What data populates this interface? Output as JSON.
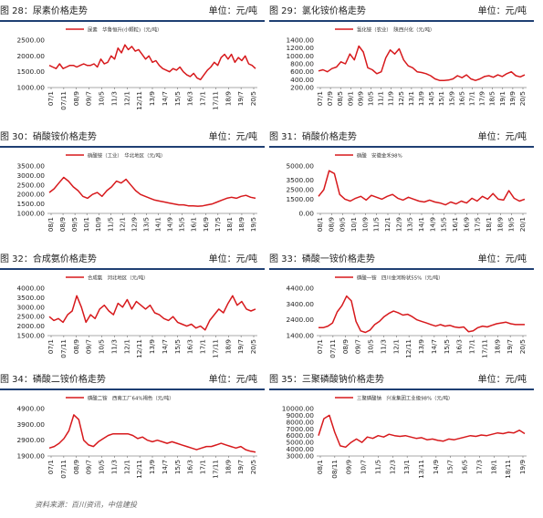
{
  "source": "资料来源：百川资讯，中信建投",
  "unit_label": "单位：元/吨",
  "accent": "#d7191c",
  "rule_color": "#1f3f73",
  "chart_data": [
    {
      "id": "c28",
      "type": "line",
      "title": "图 28：尿素价格走势",
      "legend": "尿素　华鲁恒升(小颗粒)（元/吨）",
      "ylim": [
        1000,
        2500
      ],
      "yticks": [
        "1000.00",
        "1500.00",
        "2000.00",
        "2500.00"
      ],
      "xticks": [
        "07/1",
        "07/11",
        "08/9",
        "09/7",
        "10/5",
        "11/3",
        "12/1",
        "12/11",
        "13/9",
        "14/7",
        "15/5",
        "16/3",
        "17/1",
        "17/11",
        "18/9",
        "19/7",
        "20/5"
      ],
      "values": [
        1700,
        1650,
        1600,
        1750,
        1600,
        1650,
        1700,
        1700,
        1650,
        1700,
        1750,
        1700,
        1700,
        1750,
        1650,
        1900,
        1750,
        1800,
        2000,
        1900,
        2250,
        2100,
        2350,
        2200,
        2300,
        2150,
        2200,
        2050,
        1900,
        2000,
        1800,
        1850,
        1700,
        1600,
        1550,
        1500,
        1600,
        1550,
        1650,
        1500,
        1400,
        1350,
        1450,
        1300,
        1250,
        1400,
        1550,
        1650,
        1800,
        1700,
        1950,
        2050,
        1900,
        2050,
        1800,
        1950,
        1850,
        2000,
        1750,
        1700,
        1600
      ]
    },
    {
      "id": "c29",
      "type": "line",
      "title": "图 29：氯化铵价格走势",
      "legend": "氯化铵（农业）　陕西兴化（元/吨）",
      "ylim": [
        200,
        1400
      ],
      "yticks": [
        "200.00",
        "400.00",
        "600.00",
        "800.00",
        "1000.00",
        "1200.00",
        "1400.00"
      ],
      "xticks": [
        "07/1",
        "07/9",
        "08/5",
        "09/1",
        "09/9",
        "10/5",
        "11/1",
        "11/9",
        "12/5",
        "13/1",
        "13/9",
        "14/5",
        "15/1",
        "15/9",
        "16/5",
        "17/1",
        "17/9",
        "18/5",
        "19/1",
        "19/9",
        "20/5"
      ],
      "values": [
        620,
        650,
        600,
        680,
        720,
        850,
        800,
        1050,
        900,
        1250,
        1100,
        700,
        650,
        550,
        600,
        950,
        1150,
        1050,
        1180,
        900,
        750,
        700,
        600,
        580,
        550,
        500,
        420,
        380,
        380,
        390,
        420,
        500,
        450,
        520,
        420,
        380,
        420,
        480,
        500,
        460,
        520,
        480,
        550,
        600,
        500,
        470,
        520
      ]
    },
    {
      "id": "c30",
      "type": "line",
      "title": "图 30：硝酸铵价格走势",
      "legend": "硝酸铵（工业）　华北地区（元/吨）",
      "ylim": [
        1000,
        3500
      ],
      "yticks": [
        "1000.00",
        "1500.00",
        "2000.00",
        "2500.00",
        "3000.00",
        "3500.00"
      ],
      "xticks": [
        "08/1",
        "08/9",
        "09/5",
        "10/1",
        "10/9",
        "11/5",
        "12/1",
        "12/9",
        "13/5",
        "14/1",
        "14/9",
        "15/5",
        "16/1",
        "16/9",
        "17/5",
        "18/1",
        "18/9",
        "19/5"
      ],
      "values": [
        2100,
        2300,
        2600,
        2900,
        2700,
        2400,
        2200,
        1900,
        1800,
        2000,
        2100,
        1900,
        2200,
        2400,
        2700,
        2600,
        2800,
        2500,
        2200,
        2000,
        1900,
        1800,
        1700,
        1650,
        1600,
        1550,
        1500,
        1450,
        1450,
        1400,
        1400,
        1380,
        1400,
        1450,
        1500,
        1600,
        1700,
        1800,
        1850,
        1800,
        1900,
        1950,
        1850,
        1800
      ]
    },
    {
      "id": "c31",
      "type": "line",
      "title": "图 31：硝酸价格走势",
      "legend": "硝酸　安徽金禾98%",
      "ylim": [
        0,
        5000
      ],
      "yticks": [
        "0.00",
        "1500.00",
        "2500.00",
        "3500.00",
        "5000.00"
      ],
      "xticks": [
        "08/1",
        "08/9",
        "09/5",
        "10/1",
        "10/9",
        "11/5",
        "12/1",
        "12/9",
        "13/5",
        "14/1",
        "14/9",
        "15/5",
        "16/1",
        "16/9",
        "17/5",
        "18/1",
        "18/9",
        "19/5",
        "20/1"
      ],
      "values": [
        1800,
        2500,
        4500,
        4200,
        2000,
        1500,
        1300,
        1600,
        1800,
        1400,
        1900,
        1700,
        1500,
        1800,
        2000,
        1600,
        1400,
        1700,
        1500,
        1300,
        1200,
        1400,
        1200,
        1100,
        900,
        1200,
        1000,
        1300,
        1100,
        1600,
        1300,
        1800,
        1500,
        2100,
        1500,
        1400,
        2400,
        1600,
        1300,
        1500
      ]
    },
    {
      "id": "c32",
      "type": "line",
      "title": "图 32：合成氨价格走势",
      "legend": "合成氨　河北地区（元/吨）",
      "ylim": [
        1500,
        4000
      ],
      "yticks": [
        "1500.00",
        "2000.00",
        "2500.00",
        "3000.00",
        "3500.00",
        "4000.00"
      ],
      "xticks": [
        "07/1",
        "07/11",
        "08/9",
        "09/7",
        "10/5",
        "11/3",
        "12/1",
        "12/11",
        "13/9",
        "14/7",
        "15/5",
        "16/3",
        "17/1",
        "17/11",
        "18/9",
        "19/7",
        "20/5"
      ],
      "values": [
        2500,
        2300,
        2400,
        2200,
        2600,
        2800,
        3600,
        3000,
        2200,
        2600,
        2400,
        2900,
        3100,
        2800,
        2600,
        3200,
        3000,
        3400,
        2900,
        3300,
        3100,
        2900,
        3100,
        2700,
        2600,
        2400,
        2300,
        2500,
        2200,
        2100,
        2000,
        2100,
        1900,
        2000,
        1800,
        2300,
        2600,
        2900,
        2700,
        3200,
        3600,
        3100,
        3300,
        2900,
        2800,
        2900
      ]
    },
    {
      "id": "c33",
      "type": "line",
      "title": "图 33：磷酸一铵价格走势",
      "legend": "磷酸一铵　四川金河粉状55%（元/吨）",
      "ylim": [
        1400,
        4400
      ],
      "yticks": [
        "1400.00",
        "2400.00",
        "3400.00",
        "4400.00"
      ],
      "xticks": [
        "07/1",
        "07/11",
        "08/9",
        "09/7",
        "10/5",
        "11/3",
        "12/1",
        "12/11",
        "13/9",
        "14/7",
        "15/5",
        "16/3",
        "17/1",
        "17/11",
        "18/9",
        "19/7",
        "20/5"
      ],
      "values": [
        1900,
        1900,
        2000,
        2200,
        2900,
        3300,
        3900,
        3600,
        2300,
        1700,
        1600,
        1750,
        2100,
        2300,
        2600,
        2800,
        2950,
        2850,
        2700,
        2750,
        2600,
        2400,
        2300,
        2200,
        2100,
        2000,
        2100,
        2000,
        2050,
        1950,
        1900,
        1950,
        1650,
        1700,
        1900,
        2000,
        1950,
        2050,
        2150,
        2200,
        2250,
        2150,
        2100,
        2100,
        2100
      ]
    },
    {
      "id": "c34",
      "type": "line",
      "title": "图 34：磷酸二铵价格走势",
      "legend": "磷酸二铵　西南工厂64%褐色（元/吨）",
      "ylim": [
        1900,
        4900
      ],
      "yticks": [
        "1900.00",
        "2900.00",
        "3900.00",
        "4900.00"
      ],
      "xticks": [
        "07/1",
        "07/11",
        "08/9",
        "09/7",
        "10/5",
        "11/3",
        "12/1",
        "12/11",
        "13/9",
        "14/7",
        "15/5",
        "16/3",
        "17/1",
        "17/11",
        "18/9",
        "19/7",
        "20/5"
      ],
      "values": [
        2400,
        2500,
        2700,
        3000,
        3500,
        4500,
        4200,
        2900,
        2600,
        2500,
        2800,
        3000,
        3200,
        3300,
        3300,
        3300,
        3300,
        3200,
        3000,
        3100,
        2900,
        2800,
        2900,
        2800,
        2700,
        2800,
        2700,
        2600,
        2500,
        2400,
        2300,
        2400,
        2500,
        2500,
        2600,
        2700,
        2600,
        2500,
        2400,
        2500,
        2300,
        2200,
        2150
      ]
    },
    {
      "id": "c35",
      "type": "line",
      "title": "图 35：三聚磷酸钠价格走势",
      "legend": "三聚磷酸钠　兴发集团工业级98%（元/吨）",
      "ylim": [
        3000,
        10000
      ],
      "yticks": [
        "3000.00",
        "4000.00",
        "5000.00",
        "6000.00",
        "7000.00",
        "8000.00",
        "9000.00",
        "10000.00"
      ],
      "xticks": [
        "08/1",
        "08/11",
        "09/9",
        "10/7",
        "11/5",
        "12/3",
        "13/1",
        "13/11",
        "14/9",
        "15/7",
        "16/5",
        "17/3",
        "18/1",
        "18/11",
        "19/9"
      ],
      "values": [
        6000,
        8500,
        9000,
        6500,
        4500,
        4300,
        5000,
        5500,
        5000,
        5800,
        5600,
        6000,
        5800,
        6200,
        6000,
        5900,
        6000,
        5800,
        5600,
        5700,
        5400,
        5500,
        5300,
        5200,
        5500,
        5400,
        5600,
        5800,
        6000,
        5900,
        6100,
        6000,
        6200,
        6400,
        6300,
        6500,
        6400,
        6800,
        6300
      ]
    }
  ]
}
